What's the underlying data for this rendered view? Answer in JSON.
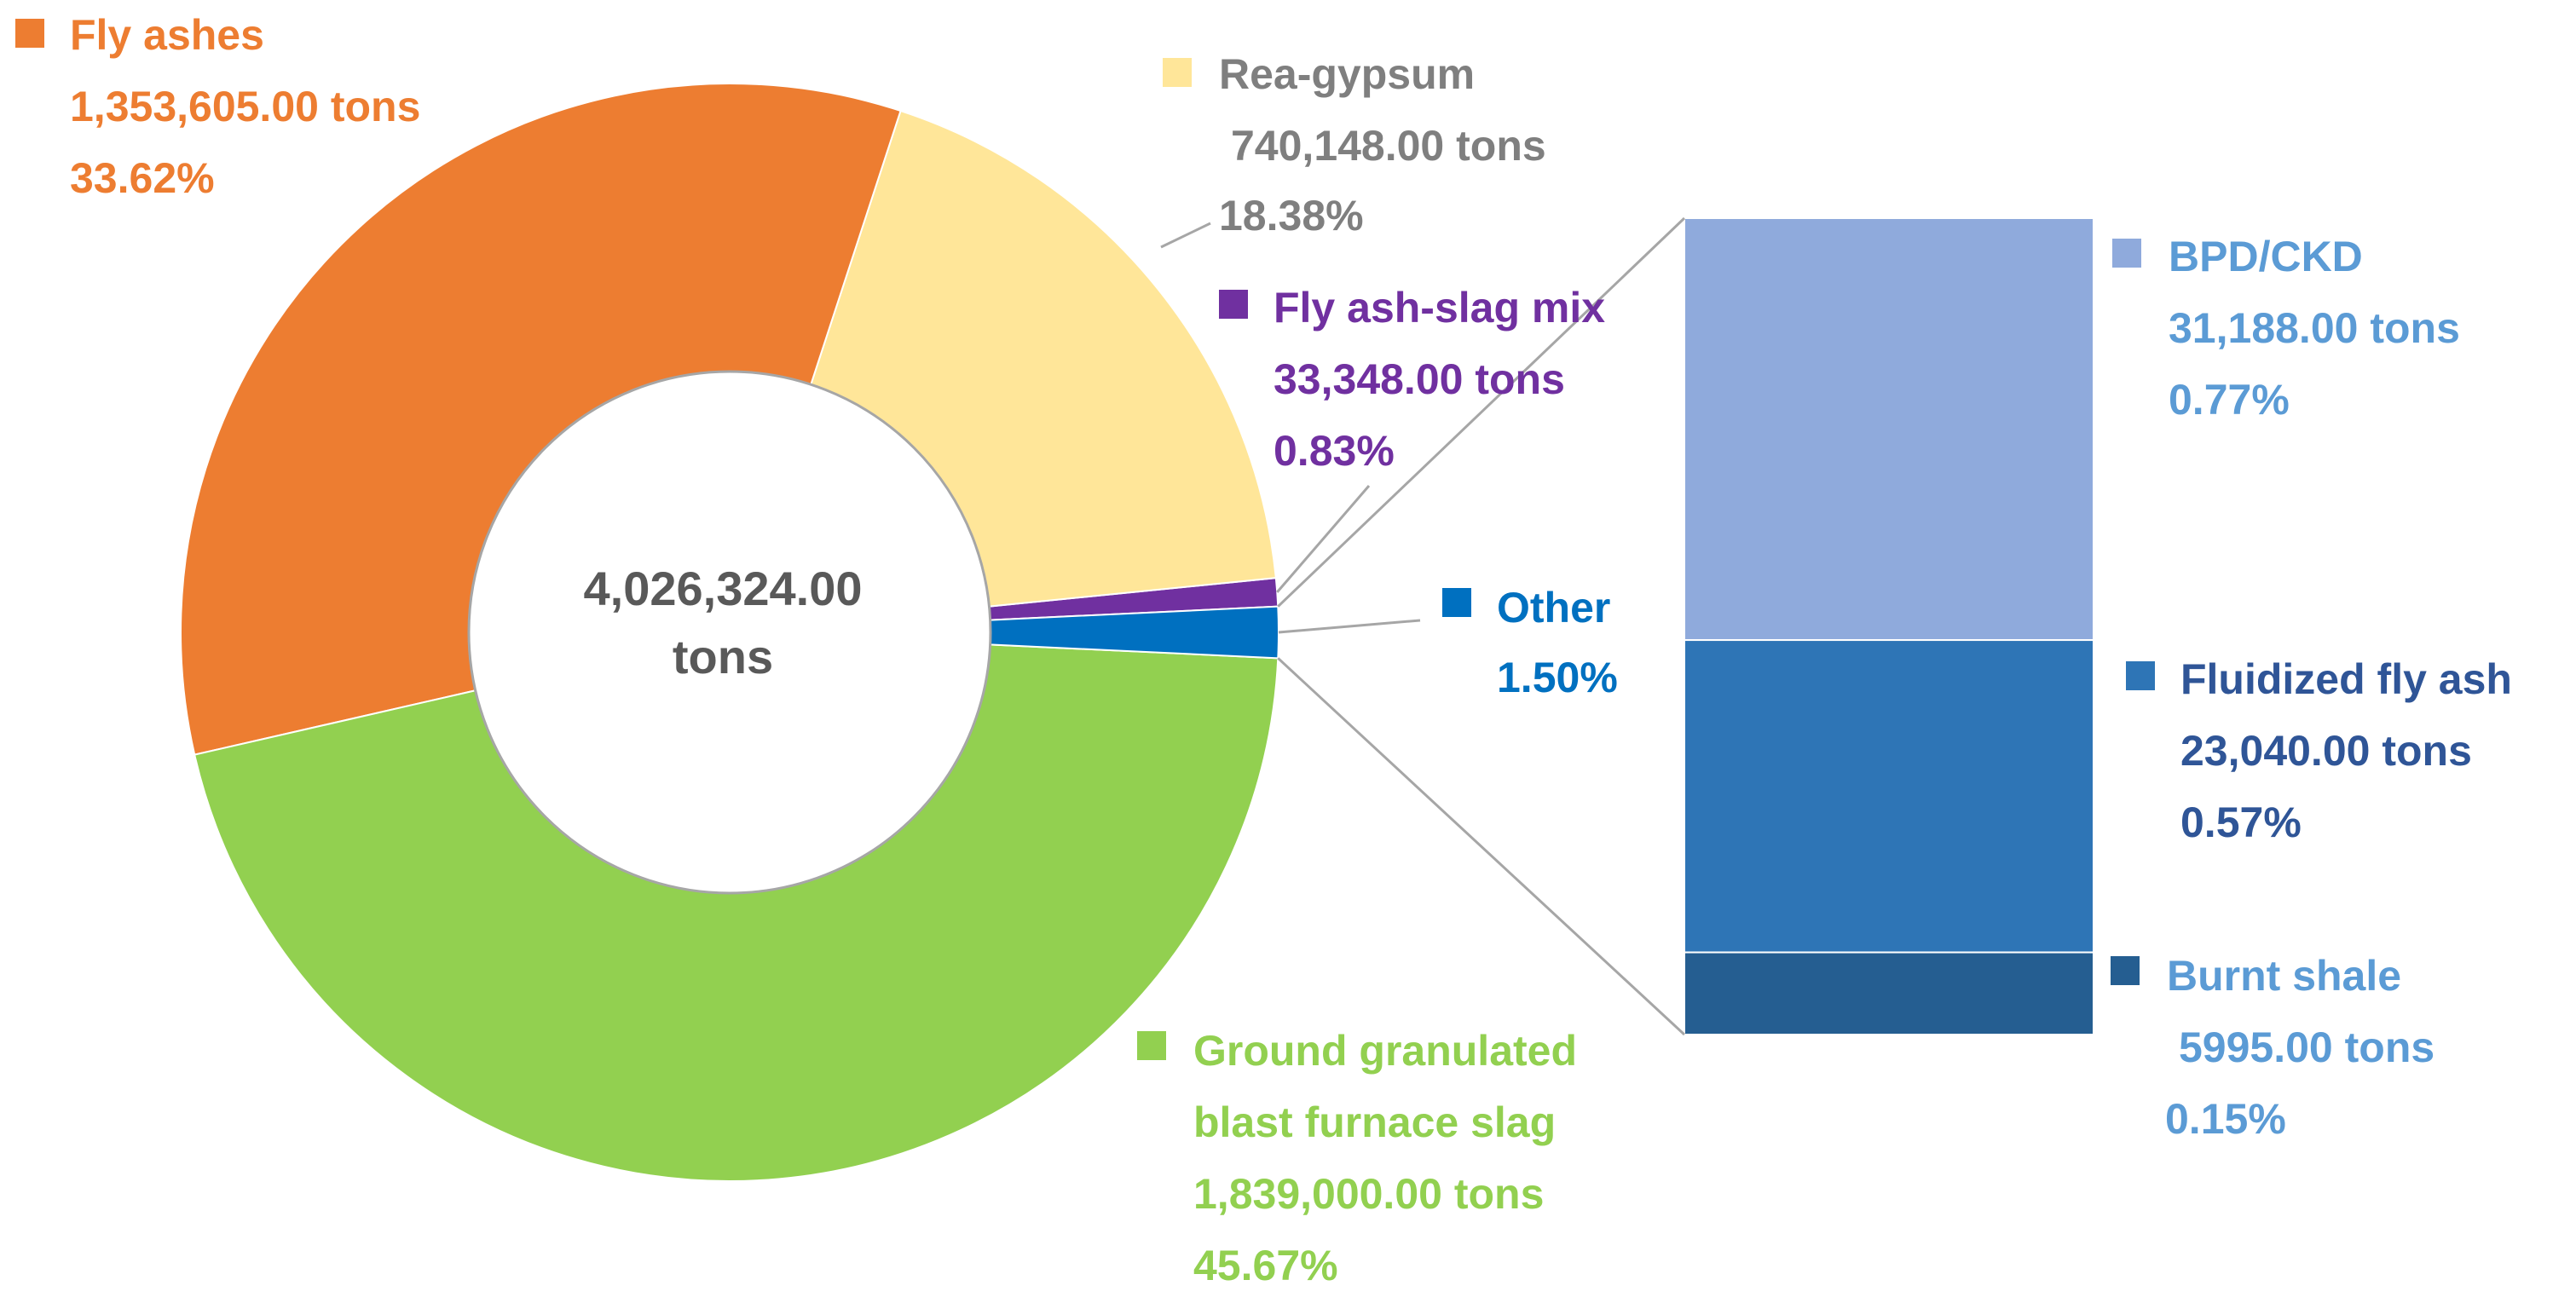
{
  "chart_data": {
    "type": "bar-of-pie",
    "center_total": {
      "line1": "4,026,324.00",
      "line2": "tons"
    },
    "pie": [
      {
        "key": "fly_ash_slag_mix",
        "name": "Fly ash-slag mix",
        "tons": "33,348.00 tons",
        "percent": "0.83%",
        "value": 0.83,
        "color": "#7030A0",
        "label_color": "#7030A0"
      },
      {
        "key": "rea_gypsum",
        "name": "Rea-gypsum",
        "tons": "740,148.00 tons",
        "percent": "18.38%",
        "value": 18.38,
        "color": "#FFE699",
        "label_color": "#7F7F7F"
      },
      {
        "key": "fly_ashes",
        "name": "Fly ashes",
        "tons": "1,353,605.00 tons",
        "percent": "33.62%",
        "value": 33.62,
        "color": "#ED7D31",
        "label_color": "#ED7D31"
      },
      {
        "key": "ggbfs",
        "name_line1": "Ground granulated",
        "name_line2": "blast furnace slag",
        "tons": "1,839,000.00 tons",
        "percent": "45.67%",
        "value": 45.67,
        "color": "#92D050",
        "label_color": "#92D050"
      },
      {
        "key": "other",
        "name": "Other",
        "percent": "1.50%",
        "value": 1.5,
        "color": "#0070C0",
        "label_color": "#0070C0"
      }
    ],
    "bar": [
      {
        "key": "bpd_ckd",
        "name": "BPD/CKD",
        "tons": "31,188.00 tons",
        "percent": "0.77%",
        "value": 0.77,
        "color": "#8FAADC",
        "label_color": "#5B9BD5"
      },
      {
        "key": "fluidized",
        "name": "Fluidized fly ash",
        "tons": "23,040.00 tons",
        "percent": "0.57%",
        "value": 0.57,
        "color": "#2E75B6",
        "label_color": "#2F5597"
      },
      {
        "key": "burnt_shale",
        "name": "Burnt shale",
        "tons": "5995.00 tons",
        "percent": "0.15%",
        "value": 0.15,
        "color": "#255E91",
        "label_color": "#5B9BD5"
      }
    ]
  }
}
